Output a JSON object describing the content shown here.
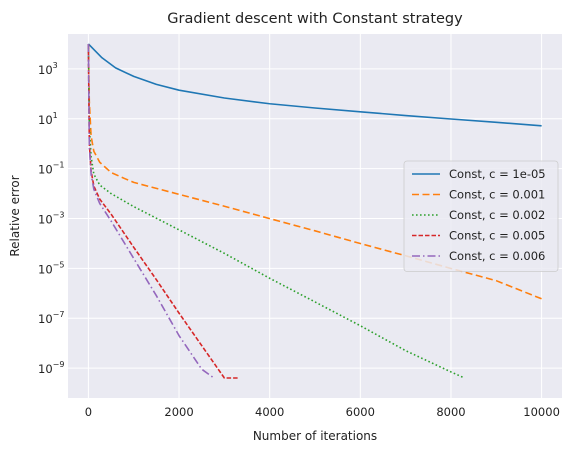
{
  "chart_data": {
    "type": "line",
    "title": "Gradient descent with Constant strategy",
    "xlabel": "Number of iterations",
    "ylabel": "Relative error",
    "xlim": [
      -450,
      10450
    ],
    "ylim_log10": [
      -10.2,
      4.4
    ],
    "yscale": "log",
    "xticks": [
      0,
      2000,
      4000,
      6000,
      8000,
      10000
    ],
    "yticks_exp": [
      -9,
      -7,
      -5,
      -3,
      -1,
      1,
      3
    ],
    "ytick_base": "10",
    "grid": true,
    "background": "#eaeaf2",
    "legend_position": "center-right",
    "series": [
      {
        "name": "Const, c = 1e-05",
        "color": "#1f77b4",
        "dash": "solid",
        "x": [
          0,
          300,
          600,
          1000,
          1500,
          2000,
          3000,
          4000,
          5000,
          6000,
          7000,
          8000,
          9000,
          10000
        ],
        "y": [
          10000,
          2800,
          1100,
          500,
          240,
          140,
          68,
          40,
          27,
          19,
          13.5,
          9.8,
          7.2,
          5.2
        ]
      },
      {
        "name": "Const, c = 0.001",
        "color": "#ff7f0e",
        "dash": "dashed",
        "x": [
          0,
          20,
          60,
          120,
          250,
          500,
          800,
          1000,
          2000,
          3000,
          4000,
          5000,
          6000,
          7000,
          8000,
          9000,
          10000
        ],
        "y": [
          10000,
          50,
          2,
          0.5,
          0.18,
          0.07,
          0.04,
          0.028,
          0.0093,
          0.0031,
          0.00099,
          0.00032,
          9.9e-05,
          3.2e-05,
          9.9e-06,
          3.2e-06,
          6e-07
        ]
      },
      {
        "name": "Const, c = 0.002",
        "color": "#2ca02c",
        "dash": "dotted",
        "x": [
          0,
          20,
          60,
          120,
          250,
          500,
          1000,
          2000,
          3000,
          4000,
          5000,
          6000,
          7000,
          8000,
          8300
        ],
        "y": [
          10000,
          5,
          0.3,
          0.06,
          0.022,
          0.01,
          0.003,
          0.00035,
          4e-05,
          4e-06,
          4.5e-07,
          5e-08,
          5e-09,
          7e-10,
          4e-10
        ]
      },
      {
        "name": "Const, c = 0.005",
        "color": "#d62728",
        "dash": "dashed-short",
        "x": [
          0,
          20,
          60,
          120,
          250,
          500,
          1000,
          1500,
          2000,
          2500,
          3000,
          3320
        ],
        "y": [
          10000,
          1,
          0.08,
          0.02,
          0.006,
          0.0015,
          7e-05,
          3.5e-06,
          1.6e-07,
          8e-09,
          4e-10,
          4e-10
        ]
      },
      {
        "name": "Const, c = 0.006",
        "color": "#9467bd",
        "dash": "dashdot",
        "x": [
          0,
          20,
          60,
          120,
          250,
          500,
          1000,
          1500,
          2000,
          2500,
          2770
        ],
        "y": [
          10000,
          0.8,
          0.06,
          0.015,
          0.004,
          0.0008,
          2.5e-05,
          8e-07,
          2e-08,
          9e-10,
          4e-10
        ]
      }
    ]
  }
}
